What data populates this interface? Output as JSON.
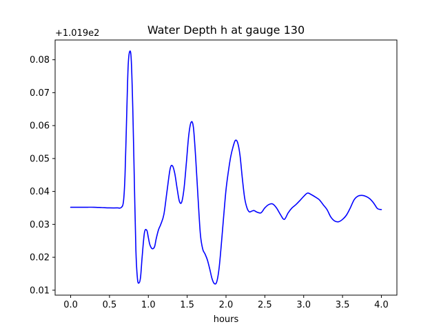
{
  "chart_data": {
    "type": "line",
    "title": "Water Depth h at gauge 130",
    "xlabel": "hours",
    "ylabel": "",
    "y_offset_label": "+1.019e2",
    "y_offset": 101.9,
    "xlim": [
      -0.2,
      4.2
    ],
    "ylim": [
      0.0085,
      0.086
    ],
    "xticks": [
      0.0,
      0.5,
      1.0,
      1.5,
      2.0,
      2.5,
      3.0,
      3.5,
      4.0
    ],
    "xtick_labels": [
      "0.0",
      "0.5",
      "1.0",
      "1.5",
      "2.0",
      "2.5",
      "3.0",
      "3.5",
      "4.0"
    ],
    "yticks": [
      0.01,
      0.02,
      0.03,
      0.04,
      0.05,
      0.06,
      0.07,
      0.08
    ],
    "ytick_labels": [
      "0.01",
      "0.02",
      "0.03",
      "0.04",
      "0.05",
      "0.06",
      "0.07",
      "0.08"
    ],
    "grid": false,
    "line_color": "#0000ff",
    "series": [
      {
        "x": [
          0.0,
          0.1,
          0.2,
          0.3,
          0.4,
          0.5,
          0.6,
          0.65,
          0.68,
          0.7,
          0.72,
          0.74,
          0.76,
          0.78,
          0.8,
          0.82,
          0.84,
          0.86,
          0.88,
          0.9,
          0.92,
          0.95,
          0.98,
          1.0,
          1.02,
          1.05,
          1.08,
          1.1,
          1.13,
          1.16,
          1.2,
          1.24,
          1.28,
          1.31,
          1.34,
          1.37,
          1.4,
          1.43,
          1.46,
          1.49,
          1.52,
          1.55,
          1.58,
          1.61,
          1.64,
          1.67,
          1.7,
          1.73,
          1.76,
          1.79,
          1.82,
          1.85,
          1.88,
          1.91,
          1.94,
          1.97,
          2.0,
          2.03,
          2.06,
          2.09,
          2.12,
          2.15,
          2.18,
          2.21,
          2.24,
          2.27,
          2.3,
          2.33,
          2.36,
          2.4,
          2.45,
          2.5,
          2.55,
          2.6,
          2.65,
          2.7,
          2.75,
          2.8,
          2.85,
          2.9,
          2.95,
          3.0,
          3.05,
          3.1,
          3.15,
          3.2,
          3.25,
          3.3,
          3.35,
          3.4,
          3.45,
          3.5,
          3.55,
          3.6,
          3.65,
          3.7,
          3.75,
          3.8,
          3.85,
          3.9,
          3.95,
          4.0
        ],
        "y": [
          0.0352,
          0.0352,
          0.0352,
          0.0352,
          0.0351,
          0.035,
          0.035,
          0.0351,
          0.037,
          0.045,
          0.062,
          0.078,
          0.0825,
          0.08,
          0.065,
          0.043,
          0.022,
          0.0135,
          0.0122,
          0.014,
          0.02,
          0.0275,
          0.0282,
          0.026,
          0.0238,
          0.0226,
          0.0232,
          0.0255,
          0.0283,
          0.03,
          0.033,
          0.04,
          0.0468,
          0.0478,
          0.0455,
          0.041,
          0.037,
          0.0368,
          0.041,
          0.0488,
          0.057,
          0.061,
          0.0595,
          0.05,
          0.038,
          0.027,
          0.0225,
          0.021,
          0.0192,
          0.0165,
          0.0135,
          0.012,
          0.0125,
          0.0165,
          0.024,
          0.0325,
          0.0405,
          0.046,
          0.0505,
          0.0535,
          0.0555,
          0.0548,
          0.051,
          0.044,
          0.038,
          0.035,
          0.0338,
          0.034,
          0.0342,
          0.0337,
          0.0335,
          0.035,
          0.036,
          0.0362,
          0.035,
          0.033,
          0.0315,
          0.0335,
          0.035,
          0.036,
          0.0372,
          0.0385,
          0.0395,
          0.039,
          0.0383,
          0.0375,
          0.036,
          0.0345,
          0.0322,
          0.031,
          0.0308,
          0.0315,
          0.0328,
          0.035,
          0.0375,
          0.0386,
          0.0388,
          0.0385,
          0.0378,
          0.0365,
          0.0348,
          0.0345
        ]
      }
    ]
  }
}
